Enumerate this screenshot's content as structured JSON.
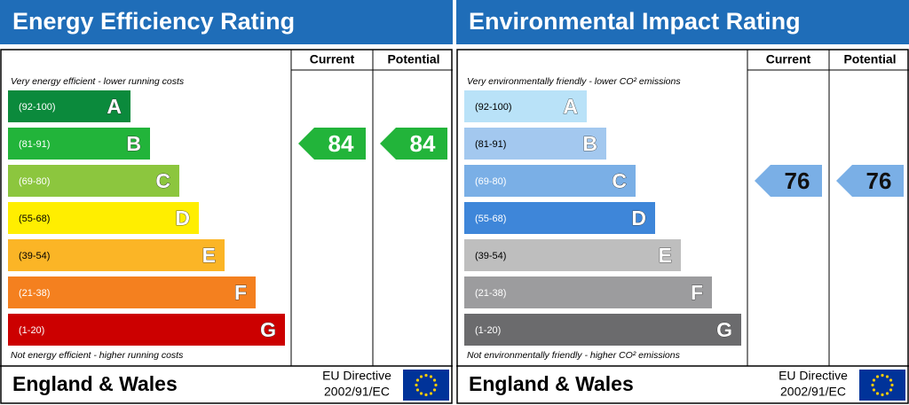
{
  "panels": [
    {
      "title": "Energy Efficiency Rating",
      "columns": [
        "Current",
        "Potential"
      ],
      "top_note": "Very energy efficient - lower running costs",
      "bottom_note": "Not energy efficient - higher running costs",
      "bands": [
        {
          "range": "(92-100)",
          "letter": "A",
          "color": "#0b8a3c",
          "text": "#ffffff"
        },
        {
          "range": "(81-91)",
          "letter": "B",
          "color": "#22b43a",
          "text": "#ffffff"
        },
        {
          "range": "(69-80)",
          "letter": "C",
          "color": "#8cc63e",
          "text": "#ffffff"
        },
        {
          "range": "(55-68)",
          "letter": "D",
          "color": "#ffee00",
          "text": "#000000"
        },
        {
          "range": "(39-54)",
          "letter": "E",
          "color": "#fbb526",
          "text": "#000000"
        },
        {
          "range": "(21-38)",
          "letter": "F",
          "color": "#f4801f",
          "text": "#ffffff"
        },
        {
          "range": "(1-20)",
          "letter": "G",
          "color": "#cc0000",
          "text": "#ffffff"
        }
      ],
      "current": 84,
      "potential": 84,
      "footer": "England & Wales",
      "directive": [
        "EU Directive",
        "2002/91/EC"
      ]
    },
    {
      "title": "Environmental Impact Rating",
      "columns": [
        "Current",
        "Potential"
      ],
      "top_note": "Very environmentally friendly - lower CO² emissions",
      "bottom_note": "Not environmentally friendly - higher CO² emissions",
      "bands": [
        {
          "range": "(92-100)",
          "letter": "A",
          "color": "#b9e2f8",
          "text": "#000000"
        },
        {
          "range": "(81-91)",
          "letter": "B",
          "color": "#a3c8ef",
          "text": "#000000"
        },
        {
          "range": "(69-80)",
          "letter": "C",
          "color": "#7aafe6",
          "text": "#ffffff"
        },
        {
          "range": "(55-68)",
          "letter": "D",
          "color": "#3e86d9",
          "text": "#ffffff"
        },
        {
          "range": "(39-54)",
          "letter": "E",
          "color": "#bebebe",
          "text": "#000000"
        },
        {
          "range": "(21-38)",
          "letter": "F",
          "color": "#9c9c9e",
          "text": "#ffffff"
        },
        {
          "range": "(1-20)",
          "letter": "G",
          "color": "#6b6b6d",
          "text": "#ffffff"
        }
      ],
      "current": 76,
      "potential": 76,
      "footer": "England & Wales",
      "directive": [
        "EU Directive",
        "2002/91/EC"
      ]
    }
  ]
}
